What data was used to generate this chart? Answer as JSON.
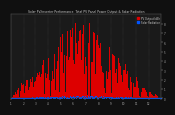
{
  "title": "Solar PV/Inverter Performance  Total PV Panel Power Output & Solar Radiation",
  "bg_color": "#101010",
  "plot_bg_color": "#1a1a1a",
  "bar_color": "#dd0000",
  "dot_color": "#0055ff",
  "grid_color": "#555555",
  "n_bars": 365,
  "peak_bar": 172,
  "bar_sigma": 80,
  "ylim": [
    0,
    9.0
  ],
  "xlim": [
    0,
    365
  ],
  "title_color": "#cccccc",
  "tick_color": "#aaaaaa",
  "legend_pv": "PV Output kWh",
  "legend_rad": "Solar Radiation"
}
